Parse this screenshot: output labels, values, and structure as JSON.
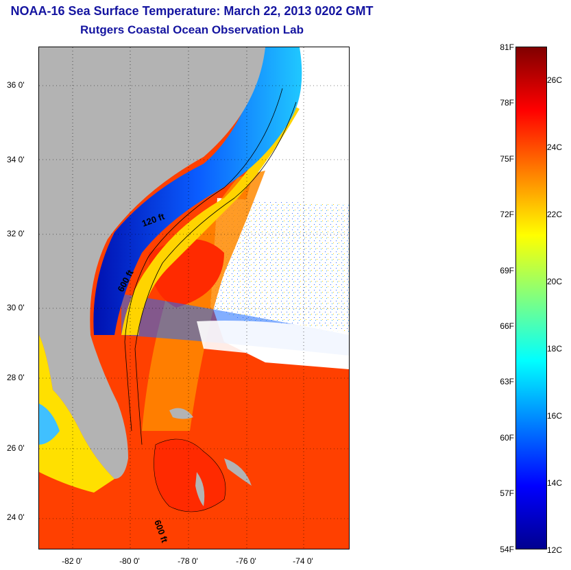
{
  "header": {
    "title": "NOAA-16 Sea Surface Temperature:  March 22, 2013 0202 GMT",
    "subtitle": "Rutgers Coastal Ocean Observation Lab"
  },
  "map": {
    "lat_ticks": [
      "24 0'",
      "26 0'",
      "28 0'",
      "30 0'",
      "32 0'",
      "34 0'",
      "36 0'"
    ],
    "lon_ticks": [
      "-82 0'",
      "-80 0'",
      "-78 0'",
      "-76 0'",
      "-74 0'"
    ],
    "contour_labels": [
      "120 ft",
      "600 ft",
      "600 ft"
    ],
    "land_color": "#b3b3b3",
    "cloud_color": "#ffffff"
  },
  "colorbar": {
    "fahrenheit_labels": [
      "81F",
      "78F",
      "75F",
      "72F",
      "69F",
      "66F",
      "63F",
      "60F",
      "57F",
      "54F"
    ],
    "celsius_labels": [
      "26C",
      "24C",
      "22C",
      "20C",
      "18C",
      "16C",
      "14C",
      "12C"
    ],
    "colormap": [
      "#00008f",
      "#0000ff",
      "#0080ff",
      "#00ffff",
      "#80ff80",
      "#ffff00",
      "#ff8000",
      "#ff0000",
      "#800000"
    ]
  }
}
